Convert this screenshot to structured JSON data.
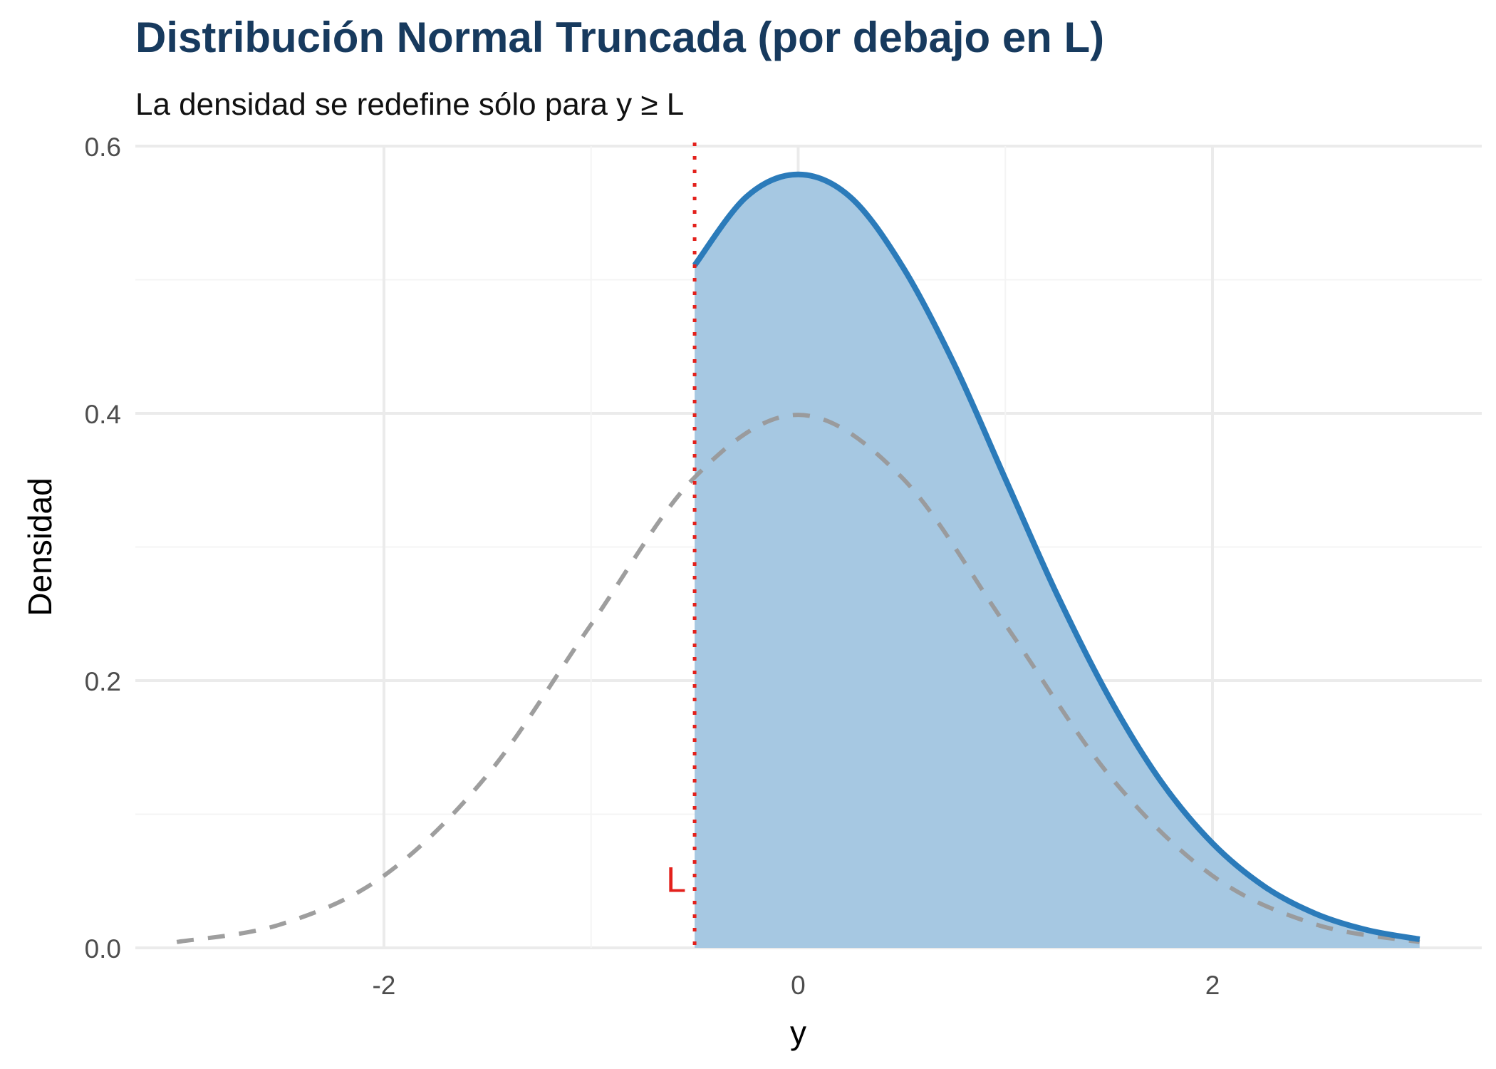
{
  "chart_data": {
    "type": "area",
    "title": "Distribución Normal Truncada (por debajo en L)",
    "subtitle": "La densidad se redefine sólo para y ≥ L",
    "xlabel": "y",
    "ylabel": "Densidad",
    "xlim": [
      -3.2,
      3.3
    ],
    "ylim": [
      0,
      0.6
    ],
    "x_ticks": [
      -2,
      0,
      2
    ],
    "x_tick_labels": [
      "-2",
      "0",
      "2"
    ],
    "y_ticks": [
      0,
      0.2,
      0.4,
      0.6
    ],
    "y_tick_labels": [
      "0.0",
      "0.2",
      "0.4",
      "0.6"
    ],
    "grid": true,
    "truncation_point": {
      "label": "L",
      "x": -0.5
    },
    "series": [
      {
        "style": "dashed",
        "color": "#999999",
        "x": [
          -3.0,
          -2.5,
          -2.0,
          -1.5,
          -1.0,
          -0.5,
          0.0,
          0.5,
          1.0,
          1.5,
          2.0,
          2.5,
          3.0
        ],
        "values": [
          0.0044,
          0.0175,
          0.054,
          0.1295,
          0.242,
          0.3521,
          0.3989,
          0.3521,
          0.242,
          0.1295,
          0.054,
          0.0175,
          0.0044
        ]
      },
      {
        "style": "solid-filled",
        "color": "#2b7bba",
        "fill": "#a6c8e2",
        "x": [
          -0.5,
          -0.25,
          0.0,
          0.25,
          0.5,
          0.75,
          1.0,
          1.25,
          1.5,
          1.75,
          2.0,
          2.25,
          2.5,
          2.75,
          3.0
        ],
        "values": [
          0.5108,
          0.5621,
          0.5788,
          0.5621,
          0.5108,
          0.4379,
          0.351,
          0.2643,
          0.1878,
          0.1249,
          0.0783,
          0.046,
          0.0254,
          0.0132,
          0.0064
        ]
      }
    ]
  }
}
